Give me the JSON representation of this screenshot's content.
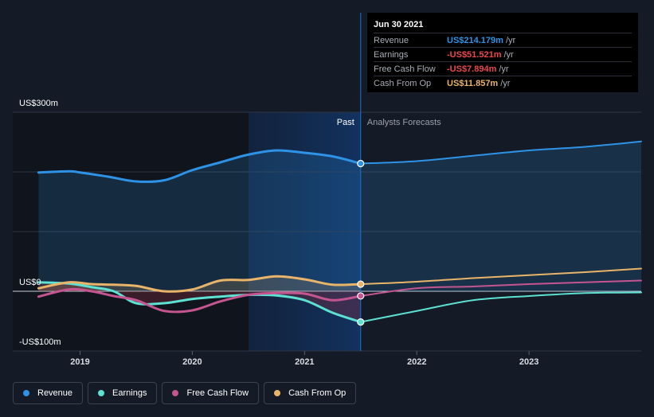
{
  "chart_data": {
    "type": "line",
    "x_range": [
      2018.4,
      2024.0
    ],
    "y_range": [
      -100,
      300
    ],
    "highlight_date": 2021.5,
    "past_label": "Past",
    "forecast_label": "Analysts Forecasts",
    "y_ticks": [
      {
        "value": 300,
        "label": "US$300m"
      },
      {
        "value": 0,
        "label": "US$0"
      },
      {
        "value": -100,
        "label": "-US$100m"
      }
    ],
    "x_ticks": [
      {
        "value": 2019,
        "label": "2019"
      },
      {
        "value": 2020,
        "label": "2020"
      },
      {
        "value": 2021,
        "label": "2021"
      },
      {
        "value": 2022,
        "label": "2022"
      },
      {
        "value": 2023,
        "label": "2023"
      }
    ],
    "series": [
      {
        "key": "revenue",
        "name": "Revenue",
        "color": "#2e93e6",
        "past": [
          [
            2018.63,
            199
          ],
          [
            2018.9,
            201
          ],
          [
            2019.0,
            199
          ],
          [
            2019.25,
            192
          ],
          [
            2019.5,
            184
          ],
          [
            2019.75,
            186
          ],
          [
            2020.0,
            203
          ],
          [
            2020.25,
            216
          ],
          [
            2020.5,
            229
          ],
          [
            2020.75,
            236
          ],
          [
            2021.0,
            232
          ],
          [
            2021.25,
            226
          ],
          [
            2021.5,
            214
          ]
        ],
        "future": [
          [
            2021.5,
            214
          ],
          [
            2022.0,
            218
          ],
          [
            2022.5,
            227
          ],
          [
            2023.0,
            236
          ],
          [
            2023.5,
            242
          ],
          [
            2024.0,
            251
          ]
        ]
      },
      {
        "key": "earnings",
        "name": "Earnings",
        "color": "#5ce1d2",
        "past": [
          [
            2018.63,
            15
          ],
          [
            2018.9,
            13
          ],
          [
            2019.1,
            7
          ],
          [
            2019.3,
            0
          ],
          [
            2019.5,
            -20
          ],
          [
            2019.75,
            -20
          ],
          [
            2020.0,
            -13
          ],
          [
            2020.25,
            -9
          ],
          [
            2020.5,
            -6
          ],
          [
            2020.75,
            -7
          ],
          [
            2021.0,
            -15
          ],
          [
            2021.25,
            -36
          ],
          [
            2021.5,
            -51.5
          ]
        ],
        "future": [
          [
            2021.5,
            -51.5
          ],
          [
            2022.0,
            -33
          ],
          [
            2022.5,
            -15
          ],
          [
            2023.0,
            -8
          ],
          [
            2023.5,
            -3
          ],
          [
            2024.0,
            -2
          ]
        ]
      },
      {
        "key": "fcf",
        "name": "Free Cash Flow",
        "color": "#c55590",
        "past": [
          [
            2018.63,
            -9
          ],
          [
            2018.9,
            3
          ],
          [
            2019.1,
            0
          ],
          [
            2019.3,
            -8
          ],
          [
            2019.5,
            -15
          ],
          [
            2019.75,
            -33
          ],
          [
            2020.0,
            -32
          ],
          [
            2020.25,
            -17
          ],
          [
            2020.5,
            -6
          ],
          [
            2020.75,
            -3
          ],
          [
            2021.0,
            -4
          ],
          [
            2021.25,
            -15
          ],
          [
            2021.5,
            -7.9
          ]
        ],
        "future": [
          [
            2021.5,
            -7.9
          ],
          [
            2022.0,
            5
          ],
          [
            2022.5,
            8
          ],
          [
            2023.0,
            12
          ],
          [
            2023.5,
            15
          ],
          [
            2024.0,
            18
          ]
        ]
      },
      {
        "key": "cfo",
        "name": "Cash From Op",
        "color": "#e8b469",
        "past": [
          [
            2018.63,
            5
          ],
          [
            2018.9,
            15
          ],
          [
            2019.1,
            12
          ],
          [
            2019.3,
            11
          ],
          [
            2019.5,
            9
          ],
          [
            2019.75,
            0
          ],
          [
            2020.0,
            3
          ],
          [
            2020.25,
            18
          ],
          [
            2020.5,
            19
          ],
          [
            2020.75,
            25
          ],
          [
            2021.0,
            20
          ],
          [
            2021.25,
            11
          ],
          [
            2021.5,
            11.9
          ]
        ],
        "future": [
          [
            2021.5,
            11.9
          ],
          [
            2022.0,
            16
          ],
          [
            2022.5,
            22
          ],
          [
            2023.0,
            27
          ],
          [
            2023.5,
            32
          ],
          [
            2024.0,
            38
          ]
        ]
      }
    ]
  },
  "tooltip": {
    "date": "Jun 30 2021",
    "rows": [
      {
        "label": "Revenue",
        "value": "US$214.179m",
        "unit": "/yr",
        "color": "#2e93e6"
      },
      {
        "label": "Earnings",
        "value": "-US$51.521m",
        "unit": "/yr",
        "color": "#e8484d"
      },
      {
        "label": "Free Cash Flow",
        "value": "-US$7.894m",
        "unit": "/yr",
        "color": "#e8484d"
      },
      {
        "label": "Cash From Op",
        "value": "US$11.857m",
        "unit": "/yr",
        "color": "#e8b469"
      }
    ]
  },
  "legend": [
    {
      "label": "Revenue",
      "color": "#2e93e6"
    },
    {
      "label": "Earnings",
      "color": "#5ce1d2"
    },
    {
      "label": "Free Cash Flow",
      "color": "#c55590"
    },
    {
      "label": "Cash From Op",
      "color": "#e8b469"
    }
  ]
}
